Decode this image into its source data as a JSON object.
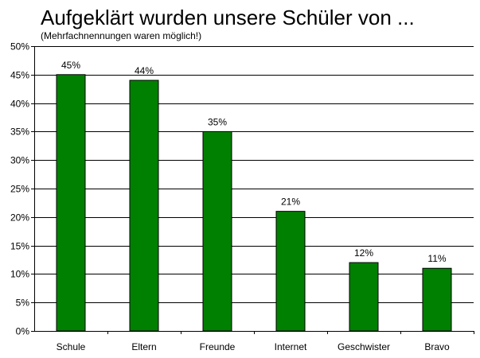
{
  "chart_data": {
    "type": "bar",
    "title": "Aufgeklärt wurden unsere Schüler von ...",
    "subtitle": "(Mehrfachnennungen waren möglich!)",
    "xlabel": "",
    "ylabel": "",
    "categories": [
      "Schule",
      "Eltern",
      "Freunde",
      "Internet",
      "Geschwister",
      "Bravo"
    ],
    "values": [
      45,
      44,
      35,
      21,
      12,
      11
    ],
    "data_labels": [
      "45%",
      "44%",
      "35%",
      "21%",
      "12%",
      "11%"
    ],
    "ylim": [
      0,
      50
    ],
    "yticks": [
      0,
      5,
      10,
      15,
      20,
      25,
      30,
      35,
      40,
      45,
      50
    ],
    "ytick_labels": [
      "0%",
      "5%",
      "10%",
      "15%",
      "20%",
      "25%",
      "30%",
      "35%",
      "40%",
      "45%",
      "50%"
    ],
    "grid": true,
    "legend": "none",
    "bar_color": "#008000",
    "bar_edge_color": "#000000"
  }
}
